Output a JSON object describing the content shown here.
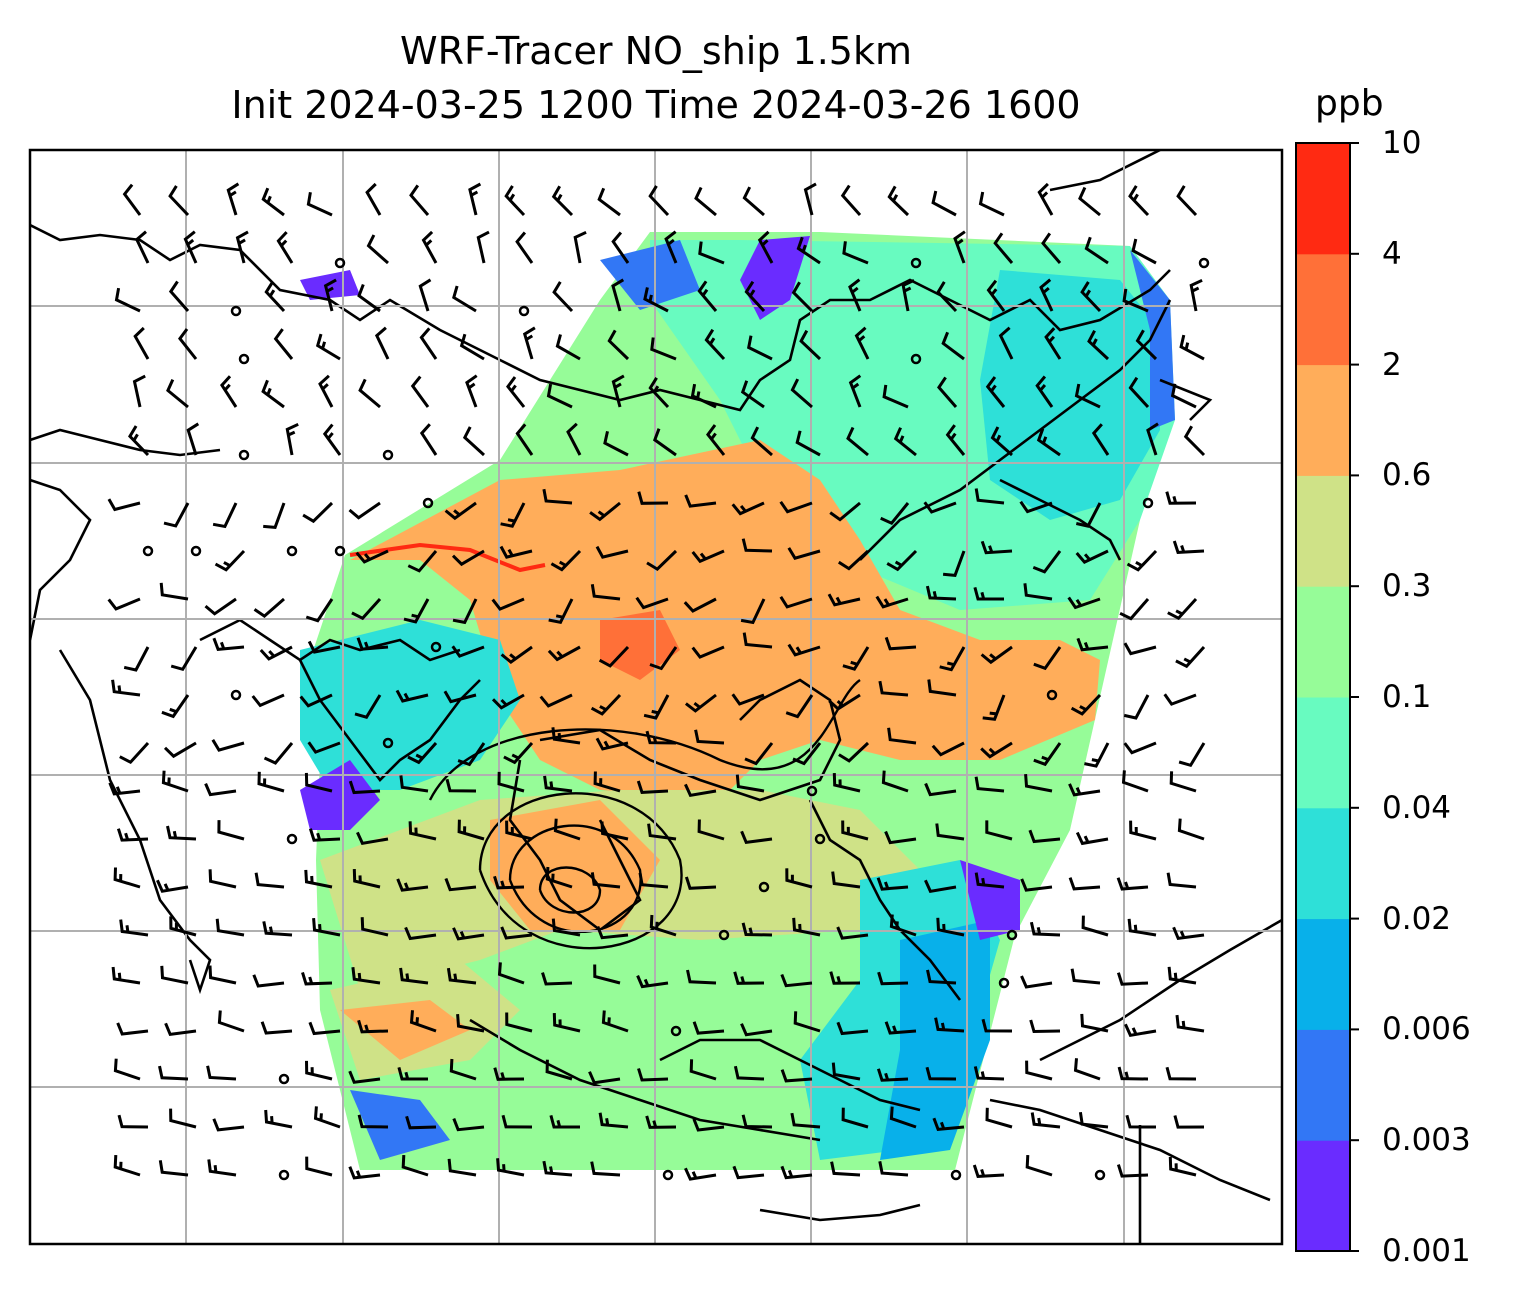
{
  "title": {
    "line1": "WRF-Tracer NO_ship 1.5km",
    "line2": "Init 2024-03-25 1200 Time 2024-03-26 1600"
  },
  "colorbar": {
    "unit": "ppb",
    "ticks": [
      "0.001",
      "0.003",
      "0.006",
      "0.02",
      "0.04",
      "0.1",
      "0.3",
      "0.6",
      "2",
      "4",
      "10"
    ],
    "colors": [
      "#6a2cff",
      "#3277f5",
      "#08b0ea",
      "#2ee0d8",
      "#68fbc0",
      "#96fc98",
      "#cfe287",
      "#ffad5a",
      "#ff7038",
      "#ff2a12"
    ]
  }
}
